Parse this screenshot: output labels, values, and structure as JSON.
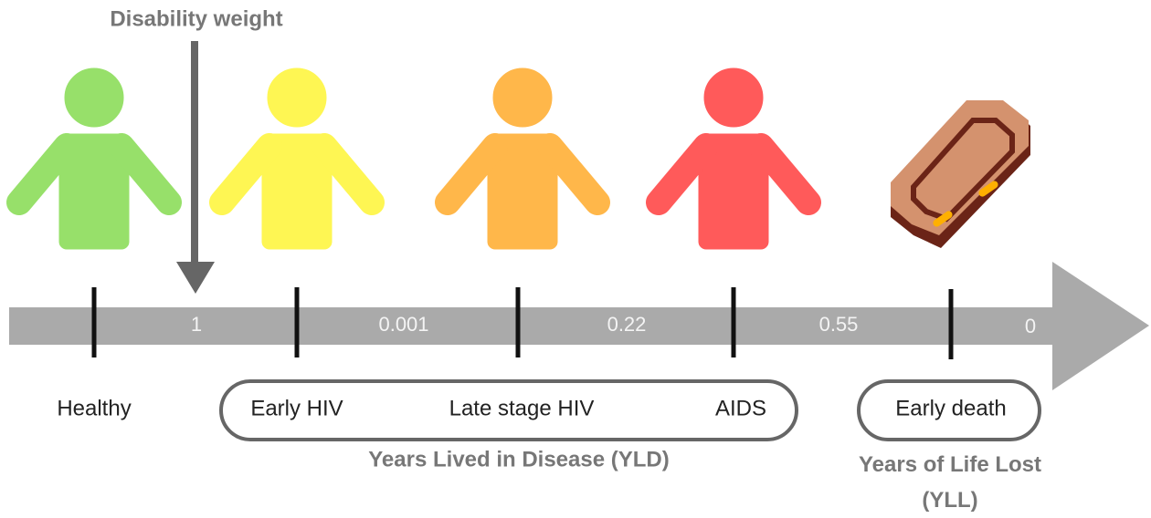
{
  "title": "Disability weight",
  "weights": [
    1,
    0.001,
    0.22,
    0.55,
    0
  ],
  "stages": [
    "Healthy",
    "Early HIV",
    "Late stage HIV",
    "AIDS",
    "Early death"
  ],
  "groups": {
    "yld": "Years Lived in Disease (YLD)",
    "yll": "Years of Life Lost (YLL)"
  }
}
